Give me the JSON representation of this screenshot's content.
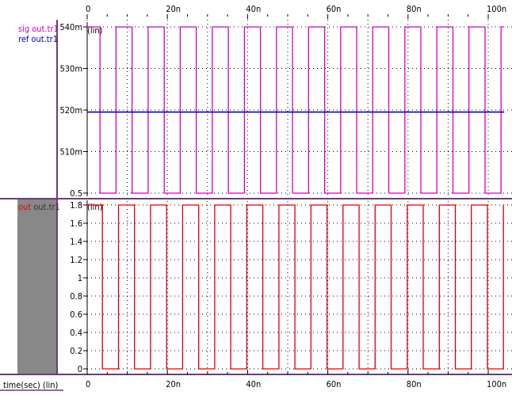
{
  "x_axis": {
    "ticks": [
      "0",
      "20n",
      "40n",
      "60n",
      "80n",
      "100n"
    ],
    "title": "time(sec) (lin)"
  },
  "panels": [
    {
      "legend": [
        {
          "label": "sig",
          "suffix": "out.tr1",
          "color": "#cc00cc"
        },
        {
          "label": "ref",
          "suffix": "out.tr1",
          "color": "#0000cc"
        }
      ],
      "scale_label": "(lin)",
      "y_ticks": [
        "540m",
        "530m",
        "520m",
        "510m",
        "0.5"
      ]
    },
    {
      "legend": [
        {
          "label": "out",
          "suffix": "out.tr1",
          "color": "#dd0000"
        }
      ],
      "scale_label": "(lin)",
      "y_ticks": [
        "1.8",
        "1.6",
        "1.4",
        "1.2",
        "1",
        "0.8",
        "0.6",
        "0.4",
        "0.2",
        "0"
      ]
    }
  ],
  "chart_data": [
    {
      "type": "line",
      "xlabel": "time(sec) (lin)",
      "xlim": [
        0,
        104
      ],
      "x_unit": "ns",
      "ylim": [
        0.5,
        0.541
      ],
      "series": [
        {
          "name": "sig",
          "color": "#cc00cc",
          "signal": "square",
          "low": 0.5,
          "high": 0.541,
          "x": [
            0,
            1.4,
            3.2,
            7.2,
            11.2,
            15.2,
            19.2,
            23.2,
            27.2,
            31.2,
            35.2,
            39.2,
            43.2,
            47.2,
            51.2,
            55.2,
            59.2,
            63.2,
            67.2,
            71.2,
            75.2,
            79.2,
            83.2,
            87.2,
            91.2,
            95.2,
            99.2,
            103.2,
            104
          ],
          "y": [
            0.541,
            0.541,
            0.5,
            0.541,
            0.5,
            0.541,
            0.5,
            0.541,
            0.5,
            0.541,
            0.5,
            0.541,
            0.5,
            0.541,
            0.5,
            0.541,
            0.5,
            0.541,
            0.5,
            0.541,
            0.5,
            0.541,
            0.5,
            0.541,
            0.5,
            0.541,
            0.5,
            0.541,
            0.541
          ]
        },
        {
          "name": "ref",
          "color": "#0000cc",
          "x": [
            0,
            104
          ],
          "y": [
            0.52,
            0.52
          ]
        }
      ]
    },
    {
      "type": "line",
      "xlabel": "time(sec) (lin)",
      "xlim": [
        0,
        104
      ],
      "x_unit": "ns",
      "ylim": [
        0,
        1.8
      ],
      "series": [
        {
          "name": "out",
          "color": "#dd0000",
          "signal": "square",
          "low": 0,
          "high": 1.8,
          "x": [
            0,
            0.6,
            3.8,
            7.8,
            11.8,
            15.8,
            19.8,
            23.8,
            27.8,
            31.8,
            35.8,
            39.8,
            43.8,
            47.8,
            51.8,
            55.8,
            59.8,
            63.8,
            67.8,
            71.8,
            75.8,
            79.8,
            83.8,
            87.8,
            91.8,
            95.8,
            99.8,
            103.8,
            104
          ],
          "y": [
            1.8,
            1.8,
            0,
            1.8,
            0,
            1.8,
            0,
            1.8,
            0,
            1.8,
            0,
            1.8,
            0,
            1.8,
            0,
            1.8,
            0,
            1.8,
            0,
            1.8,
            0,
            1.8,
            0,
            1.8,
            0,
            1.8,
            0,
            1.8,
            1.8
          ]
        }
      ]
    }
  ]
}
